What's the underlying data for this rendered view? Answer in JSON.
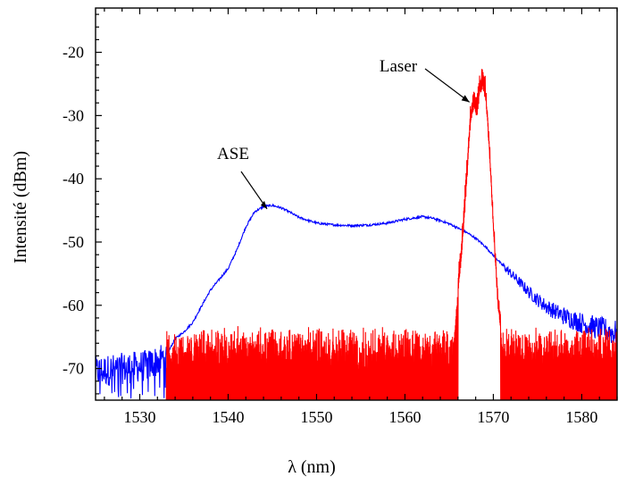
{
  "chart_data": {
    "type": "line",
    "title": "",
    "xlabel": "λ (nm)",
    "ylabel": "Intensité (dBm)",
    "xlim": [
      1525,
      1584
    ],
    "ylim": [
      -75,
      -13
    ],
    "x_ticks": [
      1530,
      1540,
      1550,
      1560,
      1570,
      1580
    ],
    "y_ticks": [
      -20,
      -30,
      -40,
      -50,
      -60,
      -70
    ],
    "grid": false,
    "legend": "none",
    "series": [
      {
        "name": "ASE",
        "color": "#0000ff",
        "x": [
          1525,
          1528,
          1531,
          1533,
          1534,
          1535,
          1536,
          1537,
          1538,
          1539,
          1540,
          1541,
          1542,
          1543,
          1544,
          1545,
          1546,
          1547,
          1548,
          1550,
          1552,
          1554,
          1556,
          1558,
          1560,
          1562,
          1563,
          1564,
          1565,
          1566,
          1567,
          1568,
          1569,
          1570,
          1571,
          1572,
          1573,
          1574,
          1575,
          1576,
          1577,
          1578,
          1580,
          1582,
          1584
        ],
        "y": [
          -70.5,
          -70,
          -69.5,
          -68,
          -65.3,
          -64.2,
          -62.7,
          -60.1,
          -57.6,
          -55.9,
          -54.2,
          -51.2,
          -47.6,
          -45.2,
          -44.4,
          -44.2,
          -44.6,
          -45.3,
          -46.1,
          -47,
          -47.3,
          -47.4,
          -47.3,
          -47,
          -46.4,
          -46,
          -46.2,
          -46.6,
          -47.1,
          -47.8,
          -48.5,
          -49.4,
          -50.6,
          -52.1,
          -53.6,
          -55,
          -56.4,
          -57.9,
          -59.1,
          -60.2,
          -61,
          -61.7,
          -62.8,
          -63.7,
          -64.5
        ],
        "noise_floor_approx": -75
      },
      {
        "name": "Laser",
        "color": "#ff0000",
        "noise_range_x": [
          1533,
          1584
        ],
        "noise_top_approx": -66,
        "noise_floor_approx": -75,
        "x": [
          1565.5,
          1566,
          1566.5,
          1567,
          1567.4,
          1567.8,
          1568.1,
          1568.5,
          1568.8,
          1569.1,
          1569.5,
          1570,
          1570.5,
          1571
        ],
        "y": [
          -66,
          -58,
          -50,
          -40,
          -31,
          -28,
          -30,
          -26,
          -25.4,
          -27,
          -35,
          -48,
          -60,
          -67
        ]
      }
    ],
    "annotations": [
      {
        "text": "ASE",
        "points_to": [
          1544.7,
          -44.2
        ]
      },
      {
        "text": "Laser",
        "points_to": [
          1567.7,
          -28.3
        ]
      }
    ]
  }
}
